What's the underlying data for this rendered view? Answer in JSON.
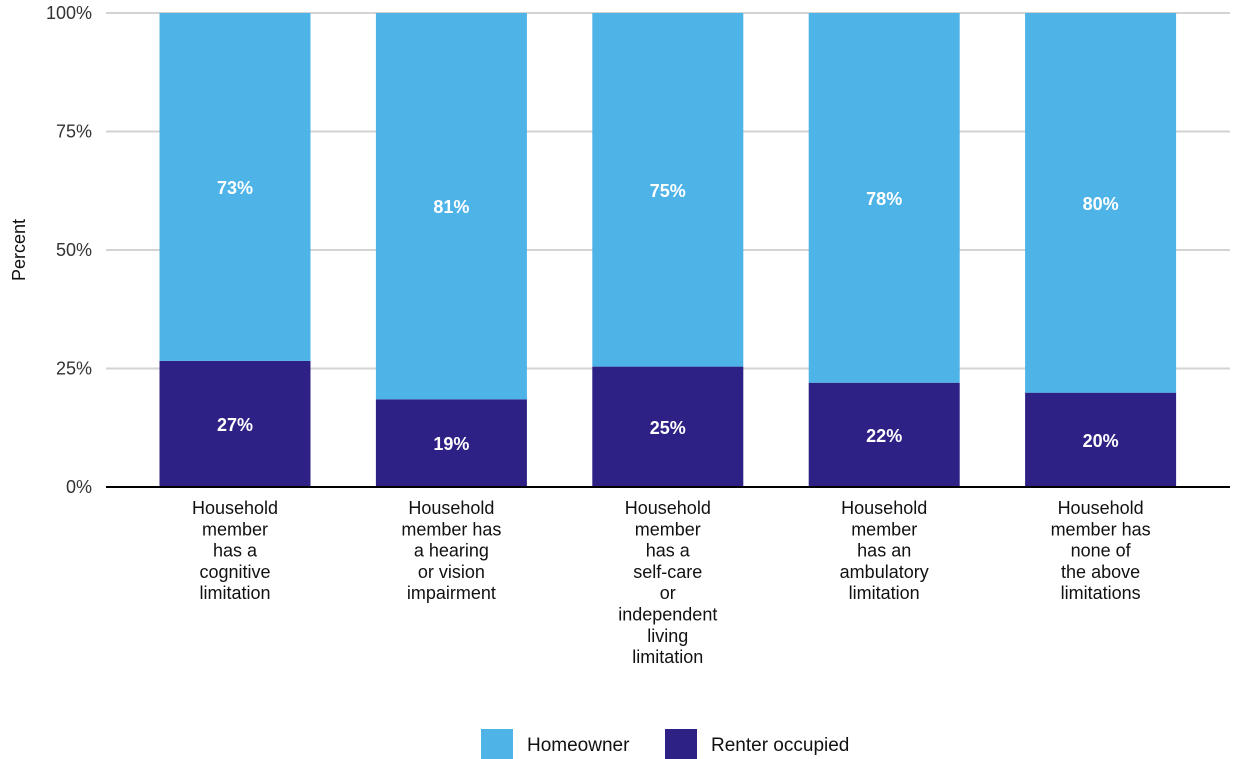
{
  "chart_data": {
    "type": "bar",
    "stacked": true,
    "ylabel": "Percent",
    "ylim": [
      0,
      100
    ],
    "yticks": [
      "0%",
      "25%",
      "50%",
      "75%",
      "100%"
    ],
    "grid": true,
    "legend_position": "bottom",
    "categories": [
      "Household member has a cognitive limitation",
      "Household member has a hearing or vision impairment",
      "Household member has a self-care or independent living limitation",
      "Household member has an ambulatory limitation",
      "Household member has none of the above limitations"
    ],
    "category_lines": [
      [
        "Household",
        "member",
        "has a",
        "cognitive",
        "limitation"
      ],
      [
        "Household",
        "member has",
        "a hearing",
        "or vision",
        "impairment"
      ],
      [
        "Household",
        "member",
        "has a",
        "self-care",
        "or",
        "independent",
        "living",
        "limitation"
      ],
      [
        "Household",
        "member",
        "has an",
        "ambulatory",
        "limitation"
      ],
      [
        "Household",
        "member has",
        "none of",
        "the above",
        "limitations"
      ]
    ],
    "series": [
      {
        "name": "Renter occupied",
        "color": "#2e2185",
        "values": [
          26.6,
          18.5,
          25.4,
          22.0,
          19.9
        ],
        "labels": [
          "27%",
          "19%",
          "25%",
          "22%",
          "20%"
        ]
      },
      {
        "name": "Homeowner",
        "color": "#4eb3e7",
        "values": [
          73.4,
          81.5,
          74.6,
          78.0,
          80.1
        ],
        "labels": [
          "73%",
          "81%",
          "75%",
          "78%",
          "80%"
        ]
      }
    ],
    "legend": [
      {
        "label": "Homeowner",
        "color": "#4eb3e7"
      },
      {
        "label": "Renter occupied",
        "color": "#2e2185"
      }
    ]
  }
}
